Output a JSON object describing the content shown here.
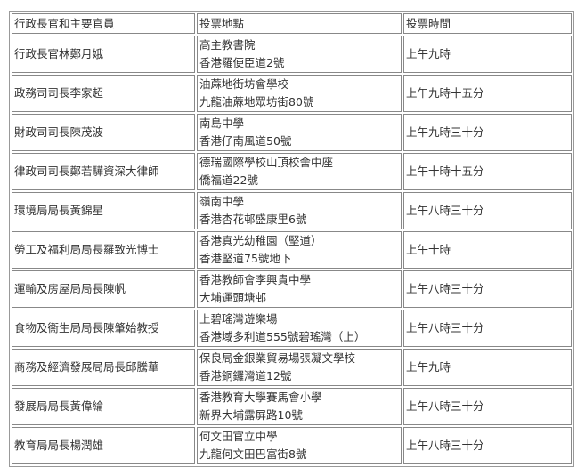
{
  "table": {
    "headers": [
      "行政長官和主要官員",
      "投票地點",
      "投票時間"
    ],
    "rows": [
      {
        "official": "行政長官林鄭月娥",
        "venue": "高主教書院",
        "address": "香港羅便臣道2號",
        "time": "上午九時"
      },
      {
        "official": "政務司司長李家超",
        "venue": "油蔴地街坊會學校",
        "address": "九龍油蔴地眾坊街80號",
        "time": "上午九時十五分"
      },
      {
        "official": "財政司司長陳茂波",
        "venue": "南島中學",
        "address": "香港仔南風道50號",
        "time": "上午九時三十分"
      },
      {
        "official": "律政司司長鄭若驊資深大律師",
        "venue": "德瑞國際學校山頂校舍中座",
        "address": "僑福道22號",
        "time": "上午十時十五分"
      },
      {
        "official": "環境局局長黃錦星",
        "venue": "嶺南中學",
        "address": "香港杏花邨盛康里6號",
        "time": "上午八時三十分"
      },
      {
        "official": "勞工及福利局局長羅致光博士",
        "venue": "香港真光幼稚園（堅道）",
        "address": "香港堅道75號地下",
        "time": "上午十時"
      },
      {
        "official": "運輸及房屋局局長陳帆",
        "venue": "香港教師會李興貴中學",
        "address": "大埔運頭塘邨",
        "time": "上午八時三十分"
      },
      {
        "official": "食物及衞生局局長陳肇始教授",
        "venue": "上碧瑤灣遊樂場",
        "address": "香港域多利道555號碧瑤灣（上）",
        "time": "上午八時三十分"
      },
      {
        "official": "商務及經濟發展局局長邱騰華",
        "venue": "保良局金銀業貿易場張凝文學校",
        "address": "香港銅鑼灣道12號",
        "time": "上午九時"
      },
      {
        "official": "發展局局長黃偉綸",
        "venue": "香港教育大學賽馬會小學",
        "address": "新界大埔露屏路10號",
        "time": "上午八時三十分"
      },
      {
        "official": "教育局局長楊潤雄",
        "venue": "何文田官立中學",
        "address": "九龍何文田巴富街8號",
        "time": "上午八時三十分"
      }
    ]
  }
}
